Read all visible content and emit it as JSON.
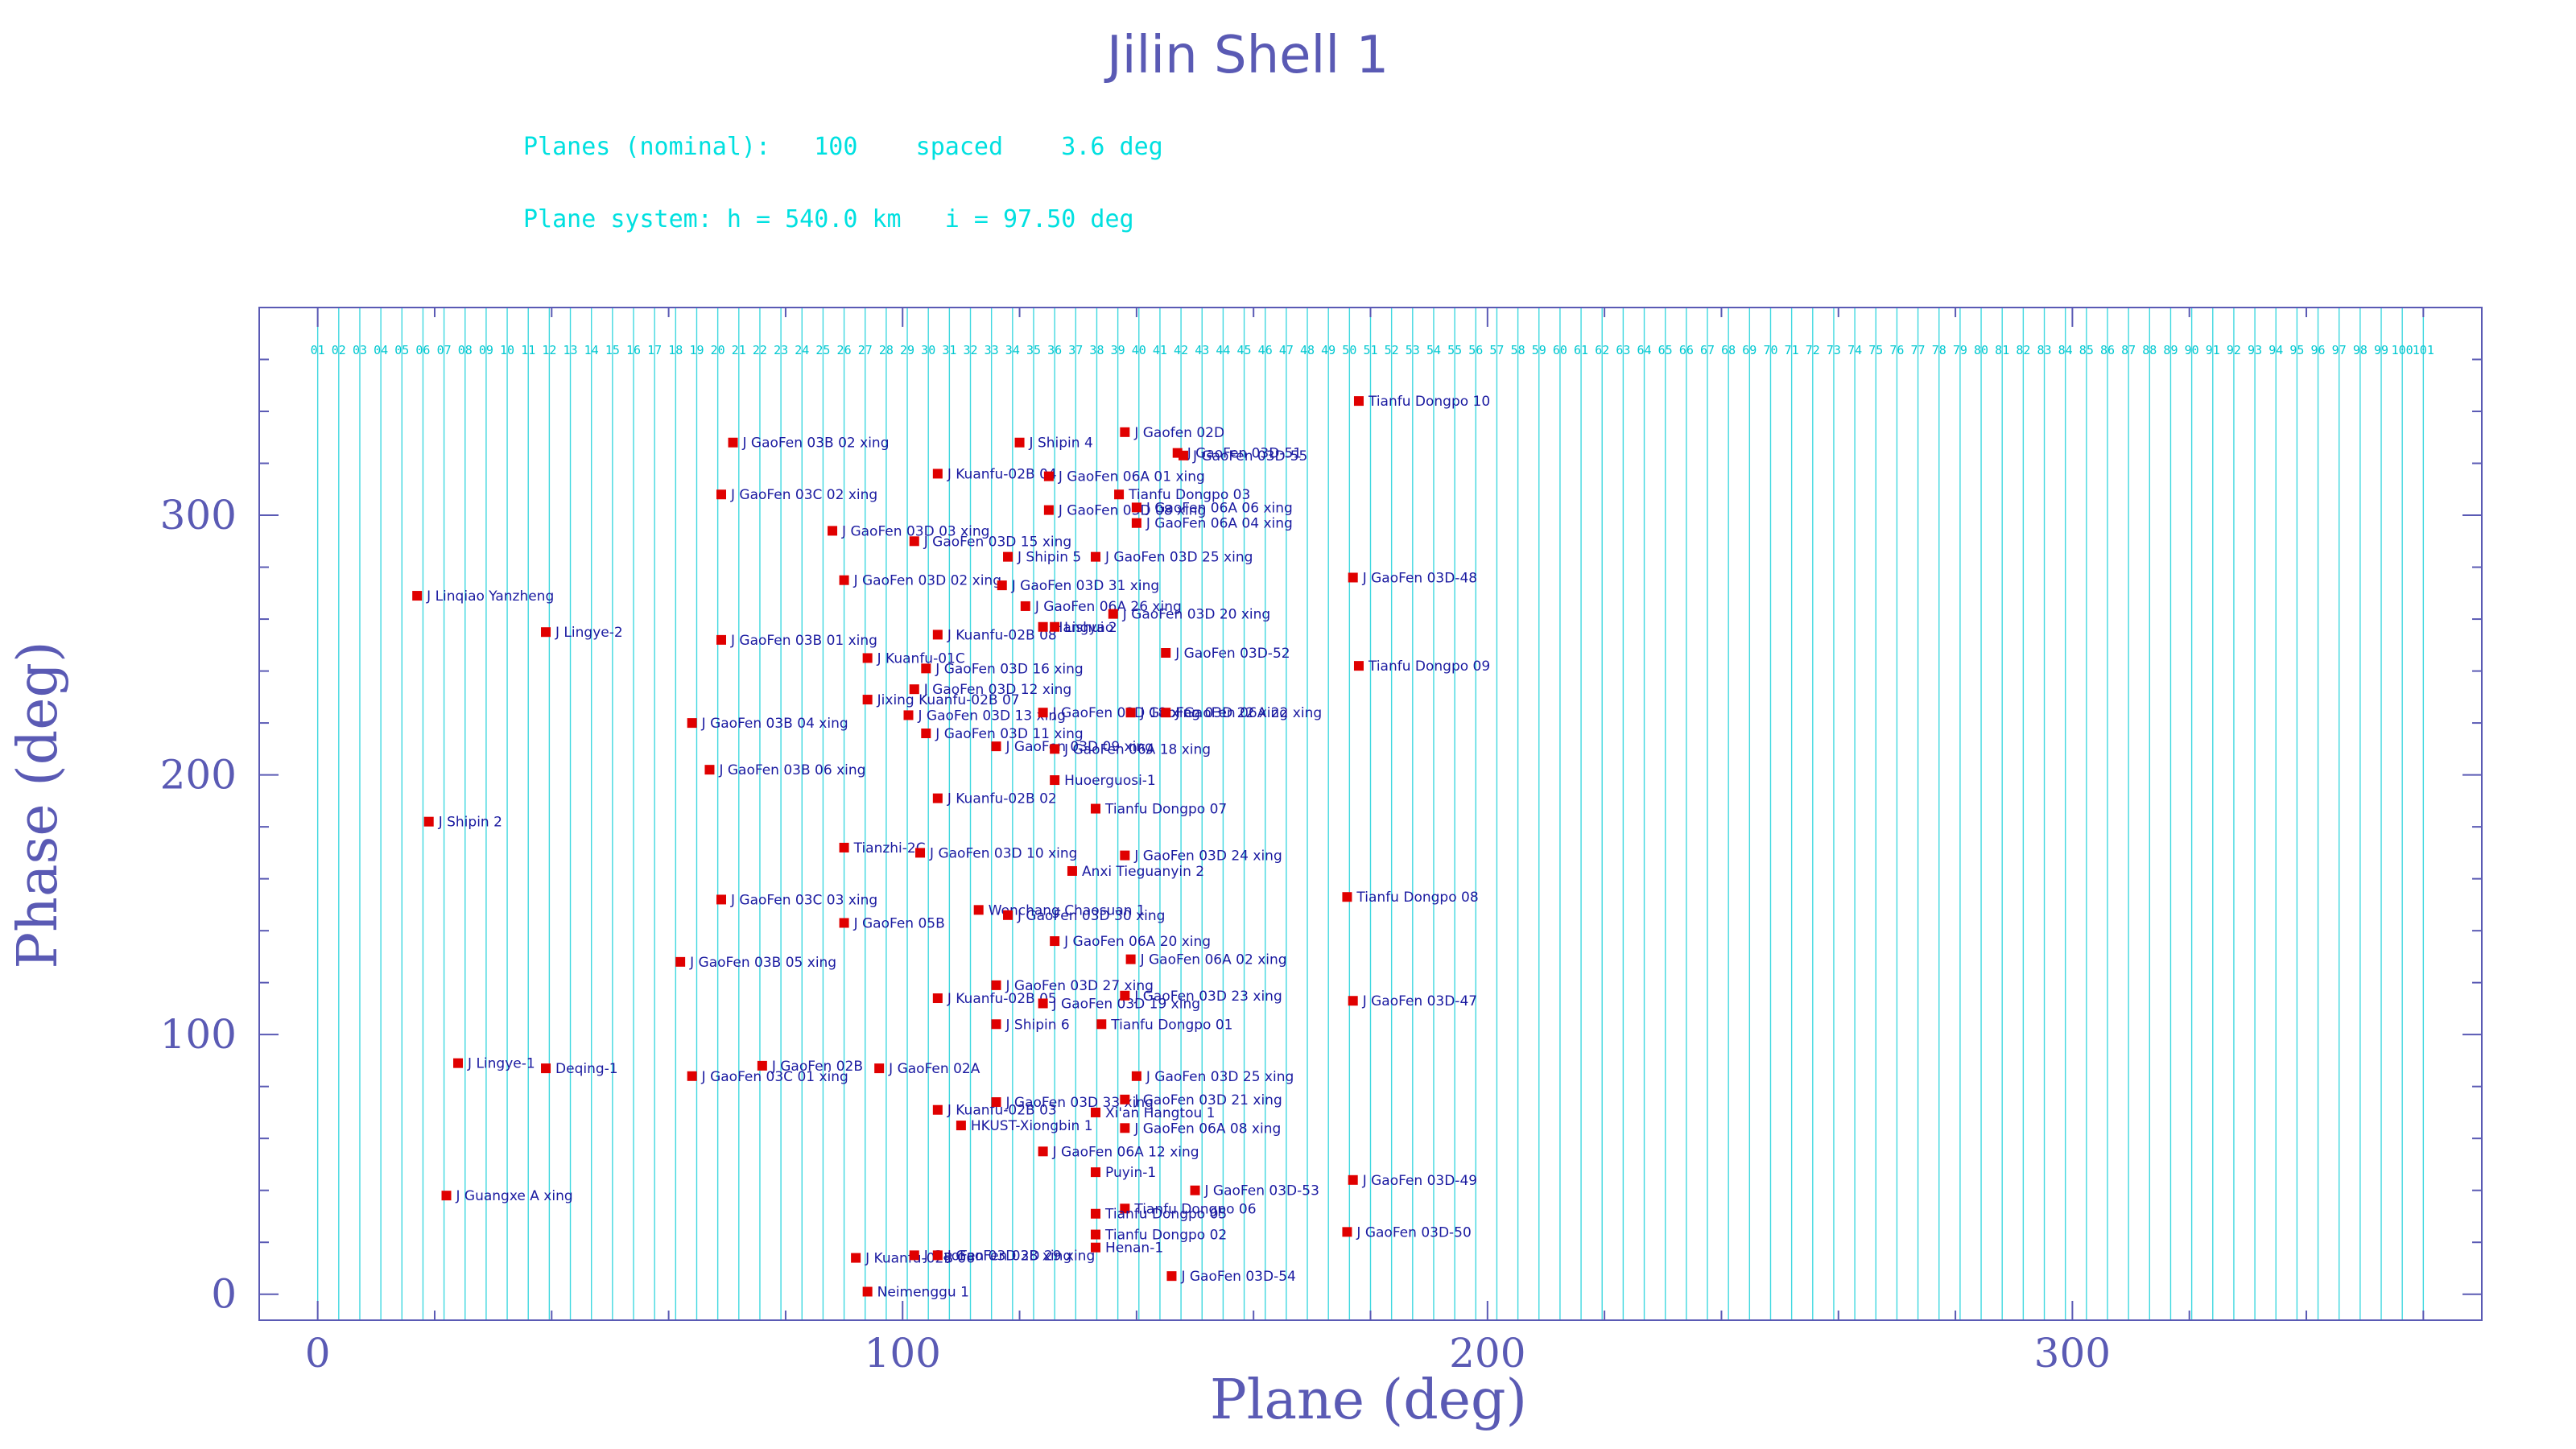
{
  "chart_data": {
    "type": "scatter",
    "title": "Jilin Shell 1",
    "info_lines": [
      "Planes (nominal):   100    spaced    3.6 deg",
      "Plane system: h = 540.0 km   i = 97.50 deg"
    ],
    "xlabel": "Plane (deg)",
    "ylabel": "Phase (deg)",
    "xlim": [
      -10,
      370
    ],
    "ylim": [
      -10,
      380
    ],
    "xticks": [
      0,
      100,
      200,
      300
    ],
    "yticks": [
      0,
      100,
      200,
      300
    ],
    "grid": "vertical plane lines every 3.6 deg",
    "plane_numbers": [
      "01",
      "02",
      "03",
      "04",
      "05",
      "06",
      "07",
      "08",
      "09",
      "10",
      "11",
      "12",
      "13",
      "14",
      "15",
      "16",
      "17",
      "18",
      "19",
      "20",
      "21",
      "22",
      "23",
      "24",
      "25",
      "26",
      "27",
      "28",
      "29",
      "30",
      "31",
      "32",
      "33",
      "34",
      "35",
      "36",
      "37",
      "38",
      "39",
      "40",
      "41",
      "42",
      "43",
      "44",
      "45",
      "46",
      "47",
      "48",
      "49",
      "50",
      "51",
      "52",
      "53",
      "54",
      "55",
      "56",
      "57",
      "58",
      "59",
      "60",
      "61",
      "62",
      "63",
      "64",
      "65",
      "66",
      "67",
      "68",
      "69",
      "70",
      "71",
      "72",
      "73",
      "74",
      "75",
      "76",
      "77",
      "78",
      "79",
      "80",
      "81",
      "82",
      "83",
      "84",
      "85",
      "86",
      "87",
      "88",
      "89",
      "90",
      "91",
      "92",
      "93",
      "94",
      "95",
      "96",
      "97",
      "98",
      "99",
      "100",
      "101"
    ],
    "points": [
      {
        "label": "Tianfu Dongpo 10",
        "x": 178,
        "y": 344
      },
      {
        "label": "J Linqiao Yanzheng",
        "x": 17,
        "y": 269
      },
      {
        "label": "J Lingye-2",
        "x": 39,
        "y": 255
      },
      {
        "label": "J Shipin 2",
        "x": 19,
        "y": 182
      },
      {
        "label": "J Lingye-1",
        "x": 24,
        "y": 89
      },
      {
        "label": "Deqing-1",
        "x": 39,
        "y": 87
      },
      {
        "label": "J Guangxe A xing",
        "x": 22,
        "y": 38
      },
      {
        "label": "J GaoFen 03B 02 xing",
        "x": 71,
        "y": 328
      },
      {
        "label": "J GaoFen 03C 02 xing",
        "x": 69,
        "y": 308
      },
      {
        "label": "J GaoFen 03D 03 xing",
        "x": 88,
        "y": 294
      },
      {
        "label": "J GaoFen 03D 02 xing",
        "x": 90,
        "y": 275
      },
      {
        "label": "J GaoFen 03B 01 xing",
        "x": 69,
        "y": 252
      },
      {
        "label": "J GaoFen 03B 04 xing",
        "x": 64,
        "y": 220
      },
      {
        "label": "J GaoFen 03B 06 xing",
        "x": 67,
        "y": 202
      },
      {
        "label": "J GaoFen 03C 03 xing",
        "x": 69,
        "y": 152
      },
      {
        "label": "J GaoFen 03B 05 xing",
        "x": 62,
        "y": 128
      },
      {
        "label": "J GaoFen 03C 01 xing",
        "x": 64,
        "y": 84
      },
      {
        "label": "J GaoFen 02B",
        "x": 76,
        "y": 88
      },
      {
        "label": "Tianzhi-2C",
        "x": 90,
        "y": 172
      },
      {
        "label": "J GaoFen 05B",
        "x": 90,
        "y": 143
      },
      {
        "label": "J Kuanfu-01C",
        "x": 94,
        "y": 245
      },
      {
        "label": "Jixing Kuanfu-02B 07",
        "x": 94,
        "y": 229
      },
      {
        "label": "J Kuanfu-02B 06",
        "x": 92,
        "y": 14
      },
      {
        "label": "Neimenggu 1",
        "x": 94,
        "y": 1
      },
      {
        "label": "J GaoFen 02A",
        "x": 96,
        "y": 87
      },
      {
        "label": "J GaoFen 03D 15 xing",
        "x": 102,
        "y": 290
      },
      {
        "label": "J GaoFen 03D 12 xing",
        "x": 102,
        "y": 233
      },
      {
        "label": "J GaoFen 03D 13 xing",
        "x": 101,
        "y": 223
      },
      {
        "label": "J GaoFen 03D 11 xing",
        "x": 104,
        "y": 216
      },
      {
        "label": "J GaoFen 03D 10 xing",
        "x": 103,
        "y": 170
      },
      {
        "label": "J GaoFen 03D 28 xing",
        "x": 102,
        "y": 15
      },
      {
        "label": "J Kuanfu-02B 04",
        "x": 106,
        "y": 316
      },
      {
        "label": "J Kuanfu-02B 08",
        "x": 106,
        "y": 254
      },
      {
        "label": "J GaoFen 03D 16 xing",
        "x": 104,
        "y": 241
      },
      {
        "label": "J Kuanfu-02B 02",
        "x": 106,
        "y": 191
      },
      {
        "label": "J Kuanfu-02B 05",
        "x": 106,
        "y": 114
      },
      {
        "label": "J Kuanfu-02B 03",
        "x": 106,
        "y": 71
      },
      {
        "label": "J GaoFen 03D 29 xing",
        "x": 106,
        "y": 15
      },
      {
        "label": "HKUST-Xiongbin 1",
        "x": 110,
        "y": 65
      },
      {
        "label": "Wenchang Chaosuan 1",
        "x": 113,
        "y": 148
      },
      {
        "label": "J GaoFen 03D 27 xing",
        "x": 116,
        "y": 119
      },
      {
        "label": "J Shipin 6",
        "x": 116,
        "y": 104
      },
      {
        "label": "J GaoFen 03D 30 xing",
        "x": 118,
        "y": 146
      },
      {
        "label": "J GaoFen 03D 31 xing",
        "x": 117,
        "y": 273
      },
      {
        "label": "J Shipin 5",
        "x": 118,
        "y": 284
      },
      {
        "label": "J GaoFen 03D 33 xing",
        "x": 116,
        "y": 74
      },
      {
        "label": "J Shipin 4",
        "x": 120,
        "y": 328
      },
      {
        "label": "J GaoFen 03D 09 xing",
        "x": 116,
        "y": 211
      },
      {
        "label": "J GaoFen 06A 26 xing",
        "x": 121,
        "y": 265
      },
      {
        "label": "Hangyao",
        "x": 124,
        "y": 257
      },
      {
        "label": "Lishui 2",
        "x": 126,
        "y": 257
      },
      {
        "label": "J GaoFen 03D 19 xing",
        "x": 124,
        "y": 112
      },
      {
        "label": "J GaoFen 06A 12 xing",
        "x": 124,
        "y": 55
      },
      {
        "label": "J GaoFen 03D 18 xing",
        "x": 124,
        "y": 224
      },
      {
        "label": "J GaoFen 06A 18 xing",
        "x": 126,
        "y": 210
      },
      {
        "label": "Huoerguosi-1",
        "x": 126,
        "y": 198
      },
      {
        "label": "J GaoFen 03D 08 xing",
        "x": 125,
        "y": 302
      },
      {
        "label": "J GaoFen 06A 01 xing",
        "x": 125,
        "y": 315
      },
      {
        "label": "Anxi Tieguanyin 2",
        "x": 129,
        "y": 163
      },
      {
        "label": "J GaoFen 06A 20 xing",
        "x": 126,
        "y": 136
      },
      {
        "label": "Tianfu Dongpo 07",
        "x": 133,
        "y": 187
      },
      {
        "label": "Tianfu Dongpo 01",
        "x": 134,
        "y": 104
      },
      {
        "label": "Tianfu Dongpo 06",
        "x": 138,
        "y": 33
      },
      {
        "label": "Tianfu Dongpo 05",
        "x": 133,
        "y": 31
      },
      {
        "label": "Tianfu Dongpo 02",
        "x": 133,
        "y": 23
      },
      {
        "label": "Henan-1",
        "x": 133,
        "y": 18
      },
      {
        "label": "J GaoFen 03D 25 xing",
        "x": 133,
        "y": 284
      },
      {
        "label": "Puyin-1",
        "x": 133,
        "y": 47
      },
      {
        "label": "Xi'an Hangtou 1",
        "x": 133,
        "y": 70
      },
      {
        "label": "Tianfu Dongpo 03",
        "x": 137,
        "y": 308
      },
      {
        "label": "J Gaofen 02D",
        "x": 138,
        "y": 332
      },
      {
        "label": "J GaoFen 03D 24 xing",
        "x": 138,
        "y": 169
      },
      {
        "label": "J GaoFen 03D 23 xing",
        "x": 138,
        "y": 115
      },
      {
        "label": "J GaoFen 03D 21 xing",
        "x": 138,
        "y": 75
      },
      {
        "label": "J GaoFen 06A 08 xing",
        "x": 138,
        "y": 64
      },
      {
        "label": "J GaoFen 03D 20 xing",
        "x": 136,
        "y": 262
      },
      {
        "label": "J GaoFen 03D 22 xing",
        "x": 139,
        "y": 224
      },
      {
        "label": "J GaoFen 06A 02 xing",
        "x": 139,
        "y": 129
      },
      {
        "label": "J GaoFen 03D 25 xing",
        "x": 140,
        "y": 84
      },
      {
        "label": "J GaoFen 06A 06 xing",
        "x": 140,
        "y": 303
      },
      {
        "label": "J GaoFen 06A 04 xing",
        "x": 140,
        "y": 297
      },
      {
        "label": "J GaoFen 06A 22 xing",
        "x": 145,
        "y": 224
      },
      {
        "label": "J GaoFen 03D-52",
        "x": 145,
        "y": 247
      },
      {
        "label": "J GaoFen 03D-51",
        "x": 147,
        "y": 324
      },
      {
        "label": "J GaoFen 03D-55",
        "x": 148,
        "y": 323
      },
      {
        "label": "J GaoFen 03D-53",
        "x": 150,
        "y": 40
      },
      {
        "label": "J GaoFen 03D-54",
        "x": 146,
        "y": 7
      },
      {
        "label": "J GaoFen 03D-48",
        "x": 177,
        "y": 276
      },
      {
        "label": "Tianfu Dongpo 09",
        "x": 178,
        "y": 242
      },
      {
        "label": "Tianfu Dongpo 08",
        "x": 176,
        "y": 153
      },
      {
        "label": "J GaoFen 03D-47",
        "x": 177,
        "y": 113
      },
      {
        "label": "J GaoFen 03D-49",
        "x": 177,
        "y": 44
      },
      {
        "label": "J GaoFen 03D-50",
        "x": 176,
        "y": 24
      }
    ]
  }
}
